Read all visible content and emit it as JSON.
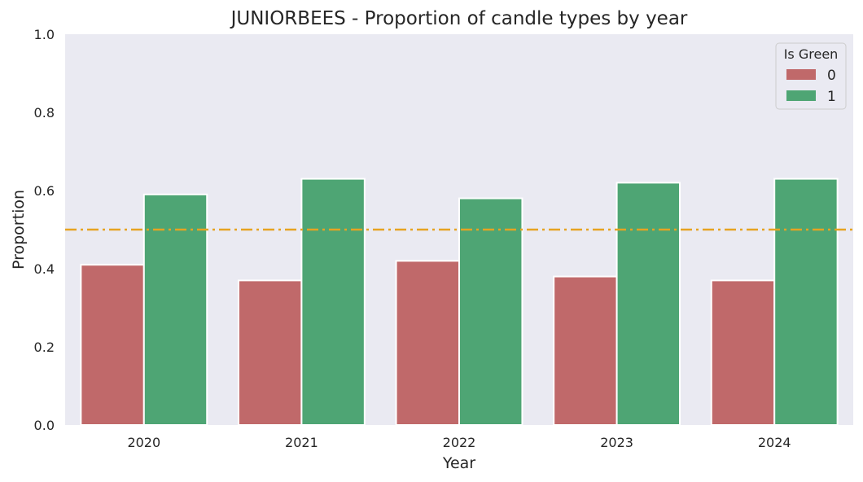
{
  "chart_data": {
    "type": "bar",
    "title": "JUNIORBEES - Proportion of candle types by year",
    "xlabel": "Year",
    "ylabel": "Proportion",
    "categories": [
      "2020",
      "2021",
      "2022",
      "2023",
      "2024"
    ],
    "series": [
      {
        "name": "0",
        "values": [
          0.41,
          0.37,
          0.42,
          0.38,
          0.37
        ],
        "color": "#c0696a"
      },
      {
        "name": "1",
        "values": [
          0.59,
          0.63,
          0.58,
          0.62,
          0.63
        ],
        "color": "#4ea574"
      }
    ],
    "ylim": [
      0,
      1.0
    ],
    "yticks": [
      "0.0",
      "0.2",
      "0.4",
      "0.6",
      "0.8",
      "1.0"
    ],
    "reference_line": {
      "y": 0.5,
      "color": "#e6a321",
      "style": "dash-dot"
    },
    "legend": {
      "title": "Is Green",
      "placement": "top-right"
    },
    "grid": false,
    "background": "#eaeaf2"
  }
}
